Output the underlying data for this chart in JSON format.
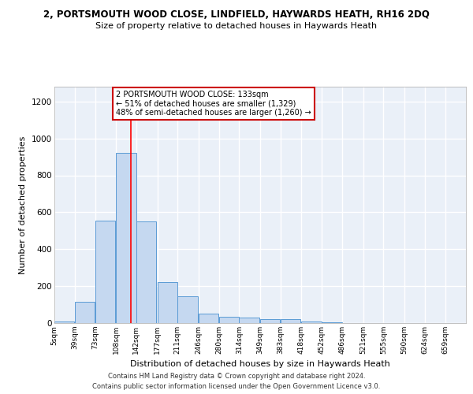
{
  "title": "2, PORTSMOUTH WOOD CLOSE, LINDFIELD, HAYWARDS HEATH, RH16 2DQ",
  "subtitle": "Size of property relative to detached houses in Haywards Heath",
  "xlabel": "Distribution of detached houses by size in Haywards Heath",
  "ylabel": "Number of detached properties",
  "bar_color": "#c5d8f0",
  "bar_edge_color": "#5b9bd5",
  "background_color": "#eaf0f8",
  "grid_color": "#ffffff",
  "annotation_text": "2 PORTSMOUTH WOOD CLOSE: 133sqm\n← 51% of detached houses are smaller (1,329)\n48% of semi-detached houses are larger (1,260) →",
  "annotation_box_color": "#ffffff",
  "annotation_box_edge_color": "#cc0000",
  "red_line_x": 133,
  "footer1": "Contains HM Land Registry data © Crown copyright and database right 2024.",
  "footer2": "Contains public sector information licensed under the Open Government Licence v3.0.",
  "bins": [
    5,
    39,
    73,
    108,
    142,
    177,
    211,
    246,
    280,
    314,
    349,
    383,
    418,
    452,
    486,
    521,
    555,
    590,
    624,
    659,
    693
  ],
  "counts": [
    10,
    115,
    555,
    920,
    550,
    220,
    145,
    50,
    35,
    30,
    20,
    20,
    10,
    3,
    2,
    1,
    0,
    0,
    0,
    0
  ],
  "ylim": [
    0,
    1280
  ],
  "yticks": [
    0,
    200,
    400,
    600,
    800,
    1000,
    1200
  ]
}
